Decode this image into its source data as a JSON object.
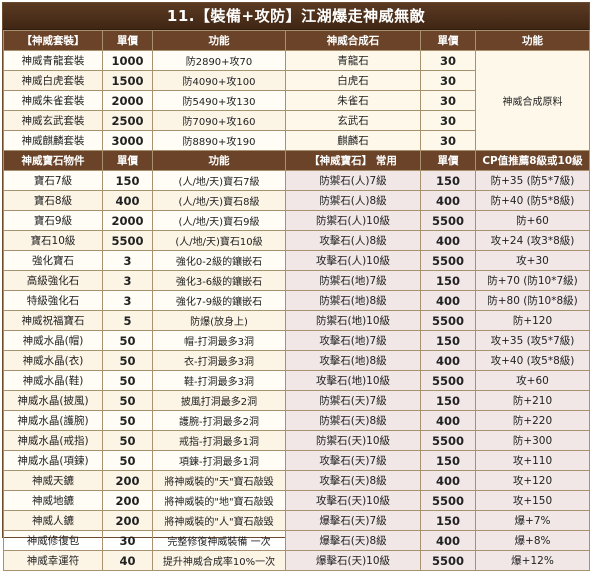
{
  "title": "11.【裝備+攻防】江湖爆走神威無敵",
  "set_section": {
    "headers": [
      "【神威套裝】",
      "單價",
      "功能",
      "神威合成石",
      "單價",
      "功能"
    ],
    "rows": [
      {
        "name": "神威青龍套裝",
        "price": "1000",
        "func": "防2890+攻70",
        "stone": "青龍石",
        "stone_price": "30"
      },
      {
        "name": "神威白虎套裝",
        "price": "1500",
        "func": "防4090+攻100",
        "stone": "白虎石",
        "stone_price": "30"
      },
      {
        "name": "神威朱雀套裝",
        "price": "2000",
        "func": "防5490+攻130",
        "stone": "朱雀石",
        "stone_price": "30"
      },
      {
        "name": "神威玄武套裝",
        "price": "2500",
        "func": "防7090+攻160",
        "stone": "玄武石",
        "stone_price": "30"
      },
      {
        "name": "神威麒麟套裝",
        "price": "3000",
        "func": "防8890+攻190",
        "stone": "麒麟石",
        "stone_price": "30"
      }
    ],
    "stone_note": "神威合成原料"
  },
  "item_section": {
    "headers": [
      "神威寶石物件",
      "單價",
      "功能",
      "【神威寶石】 常用",
      "單價",
      "CP值推薦8級或10級"
    ],
    "rows": [
      {
        "name": "寶石7級",
        "price": "150",
        "func": "(人/地/天)寶石7級",
        "gem": "防禦石(人)7級",
        "gem_price": "150",
        "cp": "防+35 (防5*7級)"
      },
      {
        "name": "寶石8級",
        "price": "400",
        "func": "(人/地/天)寶石8級",
        "gem": "防禦石(人)8級",
        "gem_price": "400",
        "cp": "防+40 (防5*8級)"
      },
      {
        "name": "寶石9級",
        "price": "2000",
        "func": "(人/地/天)寶石9級",
        "gem": "防禦石(人)10級",
        "gem_price": "5500",
        "cp": "防+60"
      },
      {
        "name": "寶石10級",
        "price": "5500",
        "func": "(人/地/天)寶石10級",
        "gem": "攻擊石(人)8級",
        "gem_price": "400",
        "cp": "攻+24 (攻3*8級)"
      },
      {
        "name": "強化寶石",
        "price": "3",
        "func": "強化0-2級的鑲嵌石",
        "gem": "攻擊石(人)10級",
        "gem_price": "5500",
        "cp": "攻+30"
      },
      {
        "name": "高級強化石",
        "price": "3",
        "func": "強化3-6級的鑲嵌石",
        "gem": "防禦石(地)7級",
        "gem_price": "150",
        "cp": "防+70 (防10*7級)"
      },
      {
        "name": "特級強化石",
        "price": "3",
        "func": "強化7-9級的鑲嵌石",
        "gem": "防禦石(地)8級",
        "gem_price": "400",
        "cp": "防+80 (防10*8級)"
      },
      {
        "name": "神威祝福寶石",
        "price": "5",
        "func": "防爆(放身上)",
        "gem": "防禦石(地)10級",
        "gem_price": "5500",
        "cp": "防+120"
      },
      {
        "name": "神威水晶(帽)",
        "price": "50",
        "func": "帽-打洞最多3洞",
        "gem": "攻擊石(地)7級",
        "gem_price": "150",
        "cp": "攻+35 (攻5*7級)"
      },
      {
        "name": "神威水晶(衣)",
        "price": "50",
        "func": "衣-打洞最多3洞",
        "gem": "攻擊石(地)8級",
        "gem_price": "400",
        "cp": "攻+40 (攻5*8級)"
      },
      {
        "name": "神威水晶(鞋)",
        "price": "50",
        "func": "鞋-打洞最多3洞",
        "gem": "攻擊石(地)10級",
        "gem_price": "5500",
        "cp": "攻+60"
      },
      {
        "name": "神威水晶(披風)",
        "price": "50",
        "func": "披風打洞最多2洞",
        "gem": "防禦石(天)7級",
        "gem_price": "150",
        "cp": "防+210"
      },
      {
        "name": "神威水晶(護腕)",
        "price": "50",
        "func": "護腕-打洞最多2洞",
        "gem": "防禦石(天)8級",
        "gem_price": "400",
        "cp": "防+220"
      },
      {
        "name": "神威水晶(戒指)",
        "price": "50",
        "func": "戒指-打洞最多1洞",
        "gem": "防禦石(天)10級",
        "gem_price": "5500",
        "cp": "防+300"
      },
      {
        "name": "神威水晶(項鍊)",
        "price": "50",
        "func": "項鍊-打洞最多1洞",
        "gem": "攻擊石(天)7級",
        "gem_price": "150",
        "cp": "攻+110"
      },
      {
        "name": "神威天鑣",
        "price": "200",
        "func": "將神威裝的\"天\"寶石敲毀",
        "gem": "攻擊石(天)8級",
        "gem_price": "400",
        "cp": "攻+120"
      },
      {
        "name": "神威地鑣",
        "price": "200",
        "func": "將神威裝的\"地\"寶石敲毀",
        "gem": "攻擊石(天)10級",
        "gem_price": "5500",
        "cp": "攻+150"
      },
      {
        "name": "神威人鑣",
        "price": "200",
        "func": "將神威裝的\"人\"寶石敲毀",
        "gem": "爆擊石(天)7級",
        "gem_price": "150",
        "cp": "爆+7%"
      },
      {
        "name": "神威修復包",
        "price": "30",
        "func": "完整修復神威裝備 一次",
        "gem": "爆擊石(天)8級",
        "gem_price": "400",
        "cp": "爆+8%"
      },
      {
        "name": "神威幸運符",
        "price": "40",
        "func": "提升神威合成率10%一次",
        "gem": "爆擊石(天)10級",
        "gem_price": "5500",
        "cp": "爆+12%"
      }
    ]
  }
}
